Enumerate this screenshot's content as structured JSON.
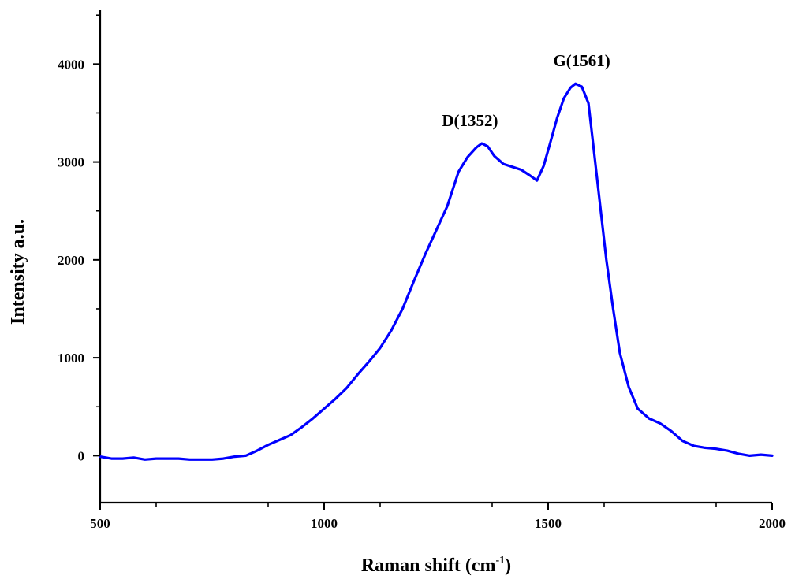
{
  "chart_data": {
    "type": "line",
    "title": "",
    "xlabel": "Raman shift (cm",
    "xlabel_sup": "-1",
    "xlabel_close": ")",
    "ylabel": "Intensity a.u.",
    "xlim": [
      500,
      2000
    ],
    "ylim": [
      -480,
      4550
    ],
    "x_ticks": [
      500,
      1000,
      1500,
      2000
    ],
    "x_tick_labels": [
      "500",
      "1000",
      "1500",
      "2000"
    ],
    "y_ticks": [
      0,
      1000,
      2000,
      3000,
      4000
    ],
    "y_tick_labels": [
      "0",
      "1000",
      "2000",
      "3000",
      "4000"
    ],
    "grid": false,
    "legend": "none",
    "series": [
      {
        "color": "#0000ff",
        "x": [
          500,
          525,
          550,
          575,
          600,
          625,
          650,
          675,
          700,
          725,
          750,
          775,
          800,
          825,
          850,
          875,
          900,
          925,
          950,
          975,
          1000,
          1025,
          1050,
          1075,
          1100,
          1125,
          1150,
          1175,
          1200,
          1225,
          1250,
          1275,
          1300,
          1320,
          1340,
          1352,
          1365,
          1380,
          1400,
          1420,
          1440,
          1460,
          1475,
          1490,
          1505,
          1520,
          1535,
          1550,
          1561,
          1575,
          1590,
          1600,
          1615,
          1630,
          1645,
          1660,
          1680,
          1700,
          1725,
          1750,
          1775,
          1800,
          1825,
          1850,
          1875,
          1900,
          1925,
          1950,
          1975,
          2000
        ],
        "y": [
          -10,
          -30,
          -30,
          -20,
          -40,
          -30,
          -30,
          -30,
          -40,
          -40,
          -40,
          -30,
          -10,
          0,
          50,
          110,
          160,
          210,
          290,
          380,
          480,
          580,
          690,
          830,
          960,
          1100,
          1280,
          1500,
          1780,
          2050,
          2300,
          2550,
          2900,
          3050,
          3150,
          3190,
          3160,
          3060,
          2980,
          2950,
          2920,
          2860,
          2810,
          2960,
          3200,
          3450,
          3650,
          3760,
          3800,
          3770,
          3600,
          3200,
          2600,
          2000,
          1500,
          1050,
          700,
          480,
          380,
          330,
          250,
          150,
          100,
          80,
          70,
          50,
          20,
          0,
          10,
          0
        ]
      }
    ],
    "annotations": [
      {
        "text": "D(1352)",
        "x": 1352,
        "y": 3190
      },
      {
        "text": "G(1561)",
        "x": 1561,
        "y": 3800
      }
    ]
  }
}
